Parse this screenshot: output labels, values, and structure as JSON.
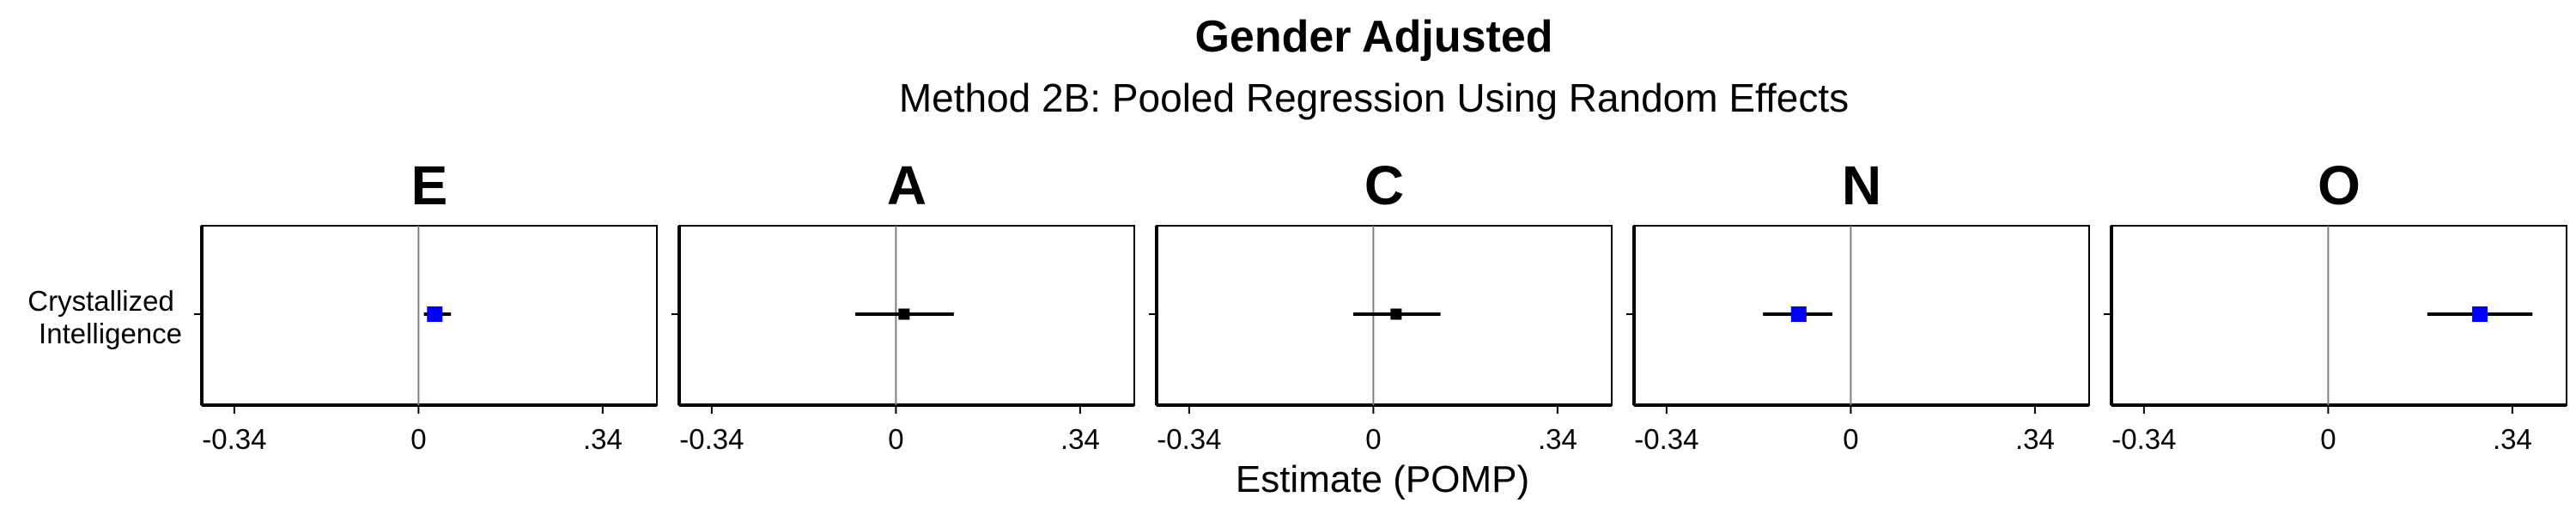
{
  "chart_data": {
    "type": "forest",
    "title": "Gender Adjusted",
    "subtitle": "Method 2B: Pooled Regression Using Random Effects",
    "xlabel": "Estimate (POMP)",
    "row_label_lines": [
      "Crystallized",
      "Intelligence"
    ],
    "xlim": [
      -0.4,
      0.44
    ],
    "xticks": [
      {
        "value": -0.34,
        "label": "-0.34"
      },
      {
        "value": 0,
        "label": "0"
      },
      {
        "value": 0.34,
        "label": ".34"
      }
    ],
    "reference_line": 0,
    "panels": [
      {
        "facet": "E",
        "estimate": 0.03,
        "ci": [
          0.01,
          0.06
        ],
        "significant": true
      },
      {
        "facet": "A",
        "estimate": 0.015,
        "ci": [
          -0.075,
          0.107
        ],
        "significant": false
      },
      {
        "facet": "C",
        "estimate": 0.042,
        "ci": [
          -0.037,
          0.124
        ],
        "significant": false
      },
      {
        "facet": "N",
        "estimate": -0.096,
        "ci": [
          -0.162,
          -0.034
        ],
        "significant": true
      },
      {
        "facet": "O",
        "estimate": 0.28,
        "ci": [
          0.183,
          0.377
        ],
        "significant": true
      }
    ],
    "colors": {
      "significant": "#0000ff",
      "nonsignificant": "#000000",
      "refline": "#7f7f7f"
    }
  }
}
